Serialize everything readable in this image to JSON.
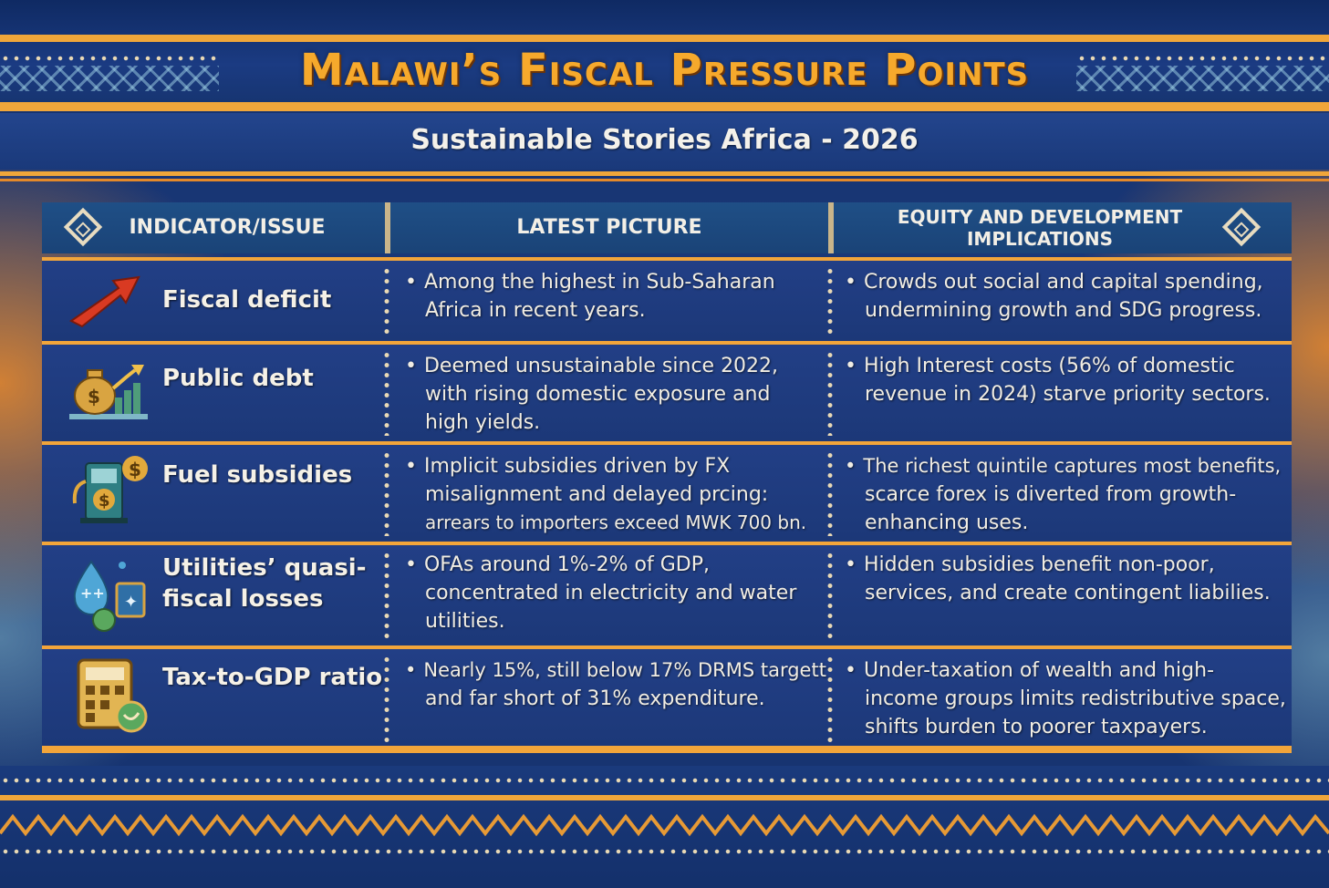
{
  "title": "Malawi’s Fiscal Pressure Points",
  "subtitle": "Sustainable Stories Africa - 2026",
  "columns": [
    "INDICATOR/ISSUE",
    "LATEST PICTURE",
    "EQUITY AND DEVELOPMENT IMPLICATIONS"
  ],
  "rows": [
    {
      "issue": [
        "Fiscal deficit"
      ],
      "icon": "rising-arrow-icon",
      "picture": [
        "Among the highest in Sub-Saharan",
        "Africa in recent years."
      ],
      "implications": [
        "Crowds out social and capital spending,",
        "undermining growth and SDG progress."
      ]
    },
    {
      "issue": [
        "Public debt"
      ],
      "icon": "money-bag-chart-icon",
      "picture": [
        "Deemed unsustainable since 2022,",
        "with rising domestic exposure and",
        "high yields."
      ],
      "implications": [
        "High Interest costs (56% of domestic",
        "revenue in 2024) starve priority sectors."
      ]
    },
    {
      "issue": [
        "Fuel subsidies"
      ],
      "icon": "fuel-pump-icon",
      "picture": [
        "Implicit subsidies driven by FX",
        "misalignment and delayed prcing:",
        "arrears to importers exceed MWK 700 bn."
      ],
      "implications": [
        "The richest quintile captures most benefits,",
        "scarce forex is diverted from growth-",
        "enhancing uses."
      ]
    },
    {
      "issue": [
        "Utilities’ quasi-",
        "fiscal losses"
      ],
      "icon": "utilities-icon",
      "picture": [
        "OFAs around 1%-2% of GDP,",
        "concentrated in electricity and water",
        "utilities."
      ],
      "implications": [
        "Hidden subsidies benefit non-poor,",
        "services, and create contingent liabilies."
      ]
    },
    {
      "issue": [
        "Tax-to-GDP ratio"
      ],
      "icon": "calculator-icon",
      "picture": [
        "Nearly 15%, still below 17% DRMS targett",
        "and far short of 31% expenditure."
      ],
      "implications": [
        "Under-taxation of wealth and high-",
        "income groups limits redistributive space,",
        "shifts burden to poorer taxpayers."
      ]
    }
  ]
}
